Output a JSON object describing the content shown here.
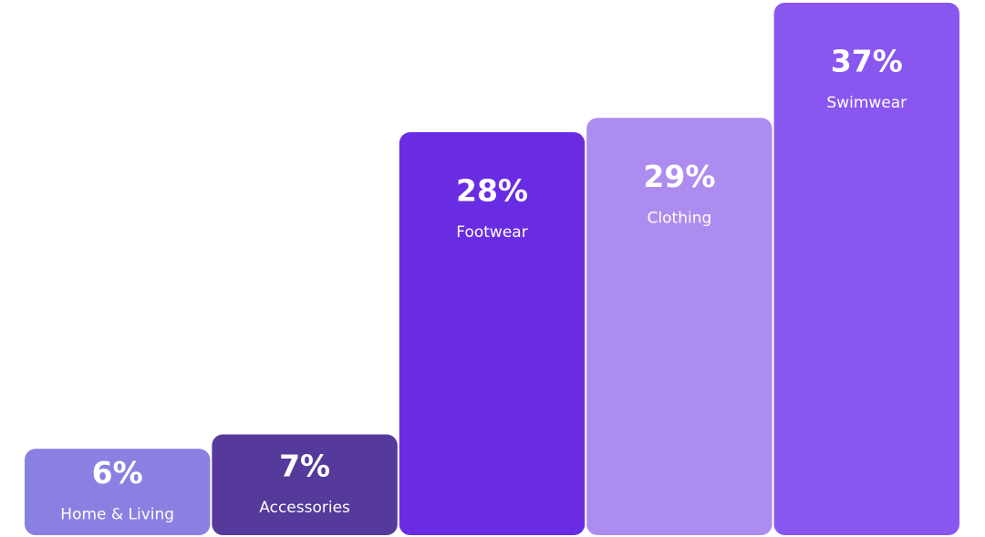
{
  "chart_data": {
    "type": "bar",
    "categories": [
      "Home & Living",
      "Accessories",
      "Footwear",
      "Clothing",
      "Swimwear"
    ],
    "values": [
      6,
      7,
      28,
      29,
      37
    ],
    "value_labels": [
      "6%",
      "7%",
      "28%",
      "29%",
      "37%"
    ],
    "colors": [
      "#8a80e2",
      "#553a9c",
      "#692ce3",
      "#ad8cef",
      "#8957f0"
    ]
  }
}
